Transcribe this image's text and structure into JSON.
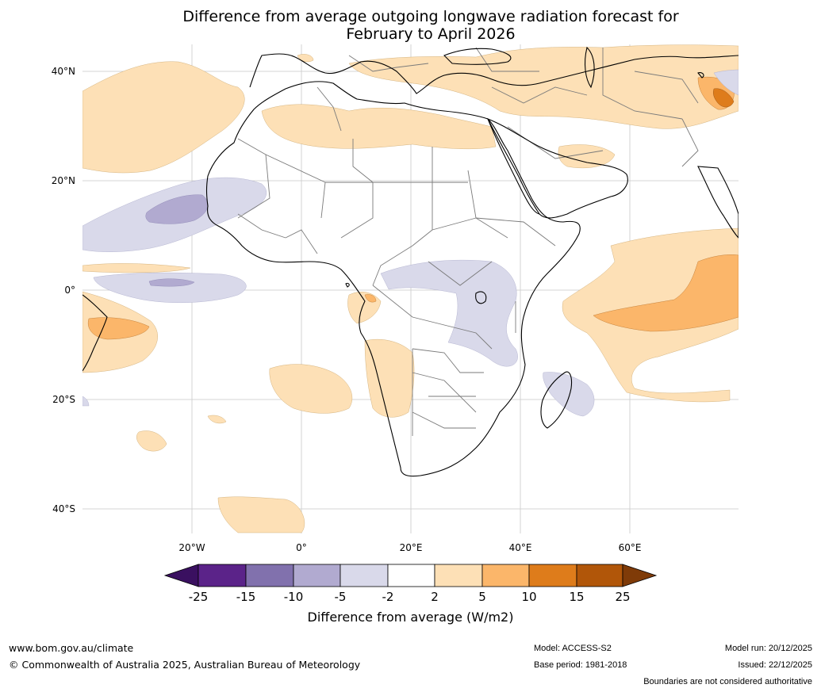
{
  "title_line1": "Difference from average outgoing longwave radiation forecast for",
  "title_line2": "February to April 2026",
  "lat_labels": [
    "40°N",
    "20°N",
    "0°",
    "20°S",
    "40°S"
  ],
  "lon_labels": [
    "20°W",
    "0°",
    "20°E",
    "40°E",
    "60°E"
  ],
  "colorbar": {
    "colors": [
      "#3a1060",
      "#5b2389",
      "#8171ad",
      "#b1aad0",
      "#d9d9ea",
      "#ffffff",
      "#fde0b6",
      "#fbb66a",
      "#de7c1b",
      "#b15609",
      "#7f3b08"
    ],
    "ticks": [
      "-25",
      "-15",
      "-10",
      "-5",
      "-2",
      "2",
      "5",
      "10",
      "15",
      "25"
    ],
    "label": "Difference from average (W/m2)"
  },
  "footer": {
    "url": "www.bom.gov.au/climate",
    "copyright": "© Commonwealth of Australia 2025, Australian Bureau of Meteorology",
    "model": "Model: ACCESS-S2",
    "base_period": "Base period: 1981-2018",
    "model_run": "Model run: 20/12/2025",
    "issued": "Issued: 22/12/2025",
    "boundaries": "Boundaries are not considered authoritative"
  }
}
